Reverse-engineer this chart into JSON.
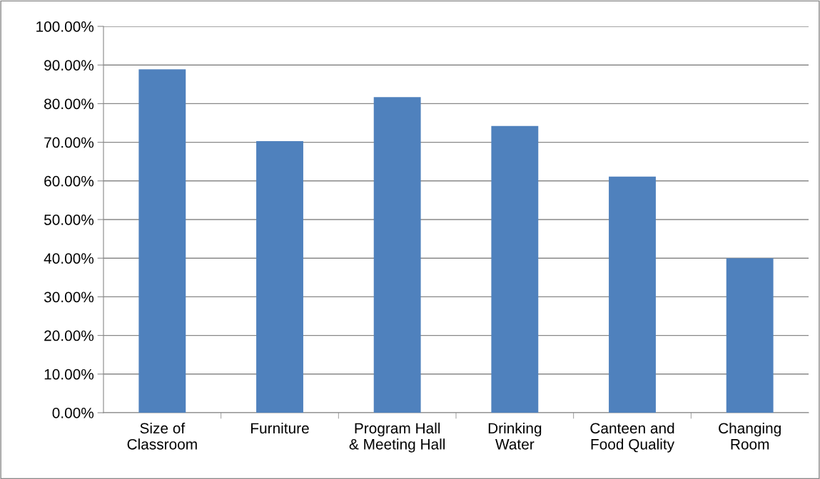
{
  "chart_data": {
    "type": "bar",
    "categories": [
      "Size of\nClassroom",
      "Furniture",
      "Program Hall\n& Meeting Hall",
      "Drinking\nWater",
      "Canteen and\nFood Quality",
      "Changing\nRoom"
    ],
    "values": [
      88.9,
      70.3,
      81.7,
      74.2,
      61.1,
      40.0
    ],
    "color": "#4f81bd",
    "ylim": [
      0,
      100
    ],
    "yticks": [
      {
        "value": 0,
        "label": "0.00%"
      },
      {
        "value": 10,
        "label": "10.00%"
      },
      {
        "value": 20,
        "label": "20.00%"
      },
      {
        "value": 30,
        "label": "30.00%"
      },
      {
        "value": 40,
        "label": "40.00%"
      },
      {
        "value": 50,
        "label": "50.00%"
      },
      {
        "value": 60,
        "label": "60.00%"
      },
      {
        "value": 70,
        "label": "70.00%"
      },
      {
        "value": 80,
        "label": "80.00%"
      },
      {
        "value": 90,
        "label": "90.00%"
      },
      {
        "value": 100,
        "label": "100.00%"
      }
    ],
    "grid": "y",
    "legend": false
  }
}
